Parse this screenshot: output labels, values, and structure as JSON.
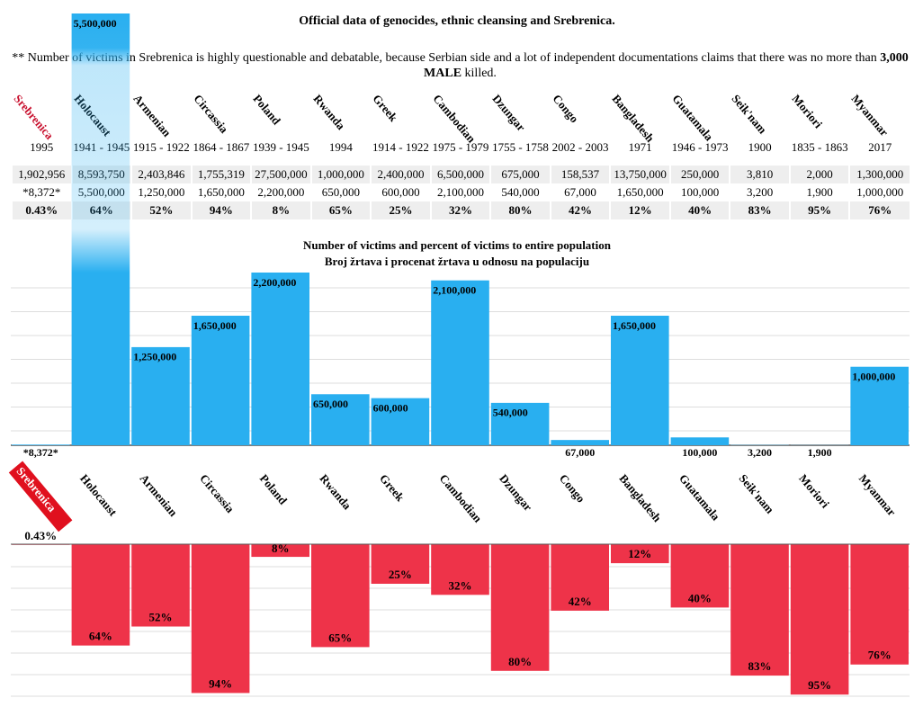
{
  "header": {
    "title": "Official data of genocides, ethnic cleansing and Srebrenica.",
    "note": [
      "** Number of victims in Srebrenica is highly questionable and debatable, because Serbian side and a lot of independent documentations claims that there was no more than ",
      "3,000 MALE",
      " killed."
    ]
  },
  "table": {
    "columns": [
      "Srebrenica",
      "Holocaust",
      "Armenian",
      "Circassia",
      "Poland",
      "Rwanda",
      "Greek",
      "Cambodian",
      "Dzungar",
      "Congo",
      "Bangladesh",
      "Guatamala",
      "Seik'nam",
      "Moriori",
      "Myanmar"
    ],
    "rows": [
      [
        "1995",
        "1941 - 1945",
        "1915 - 1922",
        "1864 - 1867",
        "1939 - 1945",
        "1994",
        "1914 - 1922",
        "1975 - 1979",
        "1755 - 1758",
        "2002 - 2003",
        "1971",
        "1946 - 1973",
        "1900",
        "1835 - 1863",
        "2017"
      ],
      [
        "1,902,956",
        "8,593,750",
        "2,403,846",
        "1,755,319",
        "27,500,000",
        "1,000,000",
        "2,400,000",
        "6,500,000",
        "675,000",
        "158,537",
        "13,750,000",
        "250,000",
        "3,810",
        "2,000",
        "1,300,000"
      ],
      [
        "*8,372*",
        "5,500,000",
        "1,250,000",
        "1,650,000",
        "2,200,000",
        "650,000",
        "600,000",
        "2,100,000",
        "540,000",
        "67,000",
        "1,650,000",
        "100,000",
        "3,200",
        "1,900",
        "1,000,000"
      ],
      [
        "0.43%",
        "64%",
        "52%",
        "94%",
        "8%",
        "65%",
        "25%",
        "32%",
        "80%",
        "42%",
        "12%",
        "40%",
        "83%",
        "95%",
        "76%"
      ]
    ]
  },
  "chart_data": [
    {
      "type": "bar",
      "title": "Number of victims and percent of victims to entire population",
      "subtitle": "Broj žrtava i procenat žrtava u odnosu na populaciju",
      "values": [
        8372,
        5500000,
        1250000,
        1650000,
        2200000,
        650000,
        600000,
        2100000,
        540000,
        67000,
        1650000,
        100000,
        3200,
        1900,
        1000000
      ],
      "value_labels": [
        "*8,372*",
        "5,500,000",
        "1,250,000",
        "1,650,000",
        "2,200,000",
        "650,000",
        "600,000",
        "2,100,000",
        "540,000",
        "67,000",
        "1,650,000",
        "100,000",
        "3,200",
        "1,900",
        "1,000,000"
      ],
      "color": "#29aff0",
      "ylim": [
        0,
        5500000
      ]
    },
    {
      "type": "bar-down",
      "categories": [
        "Srebrenica",
        "Holocaust",
        "Armenian",
        "Circassia",
        "Poland",
        "Rwanda",
        "Greek",
        "Cambodian",
        "Dzungar",
        "Congo",
        "Bangladesh",
        "Guatamala",
        "Seik'nam",
        "Moriori",
        "Myanmar"
      ],
      "values": [
        0.43,
        64,
        52,
        94,
        8,
        65,
        25,
        32,
        80,
        42,
        12,
        40,
        83,
        95,
        76
      ],
      "value_labels": [
        "0.43%",
        "64%",
        "52%",
        "94%",
        "8%",
        "65%",
        "25%",
        "32%",
        "80%",
        "42%",
        "12%",
        "40%",
        "83%",
        "95%",
        "76%"
      ],
      "color": "#ee3349",
      "ylim": [
        0,
        100
      ]
    }
  ]
}
